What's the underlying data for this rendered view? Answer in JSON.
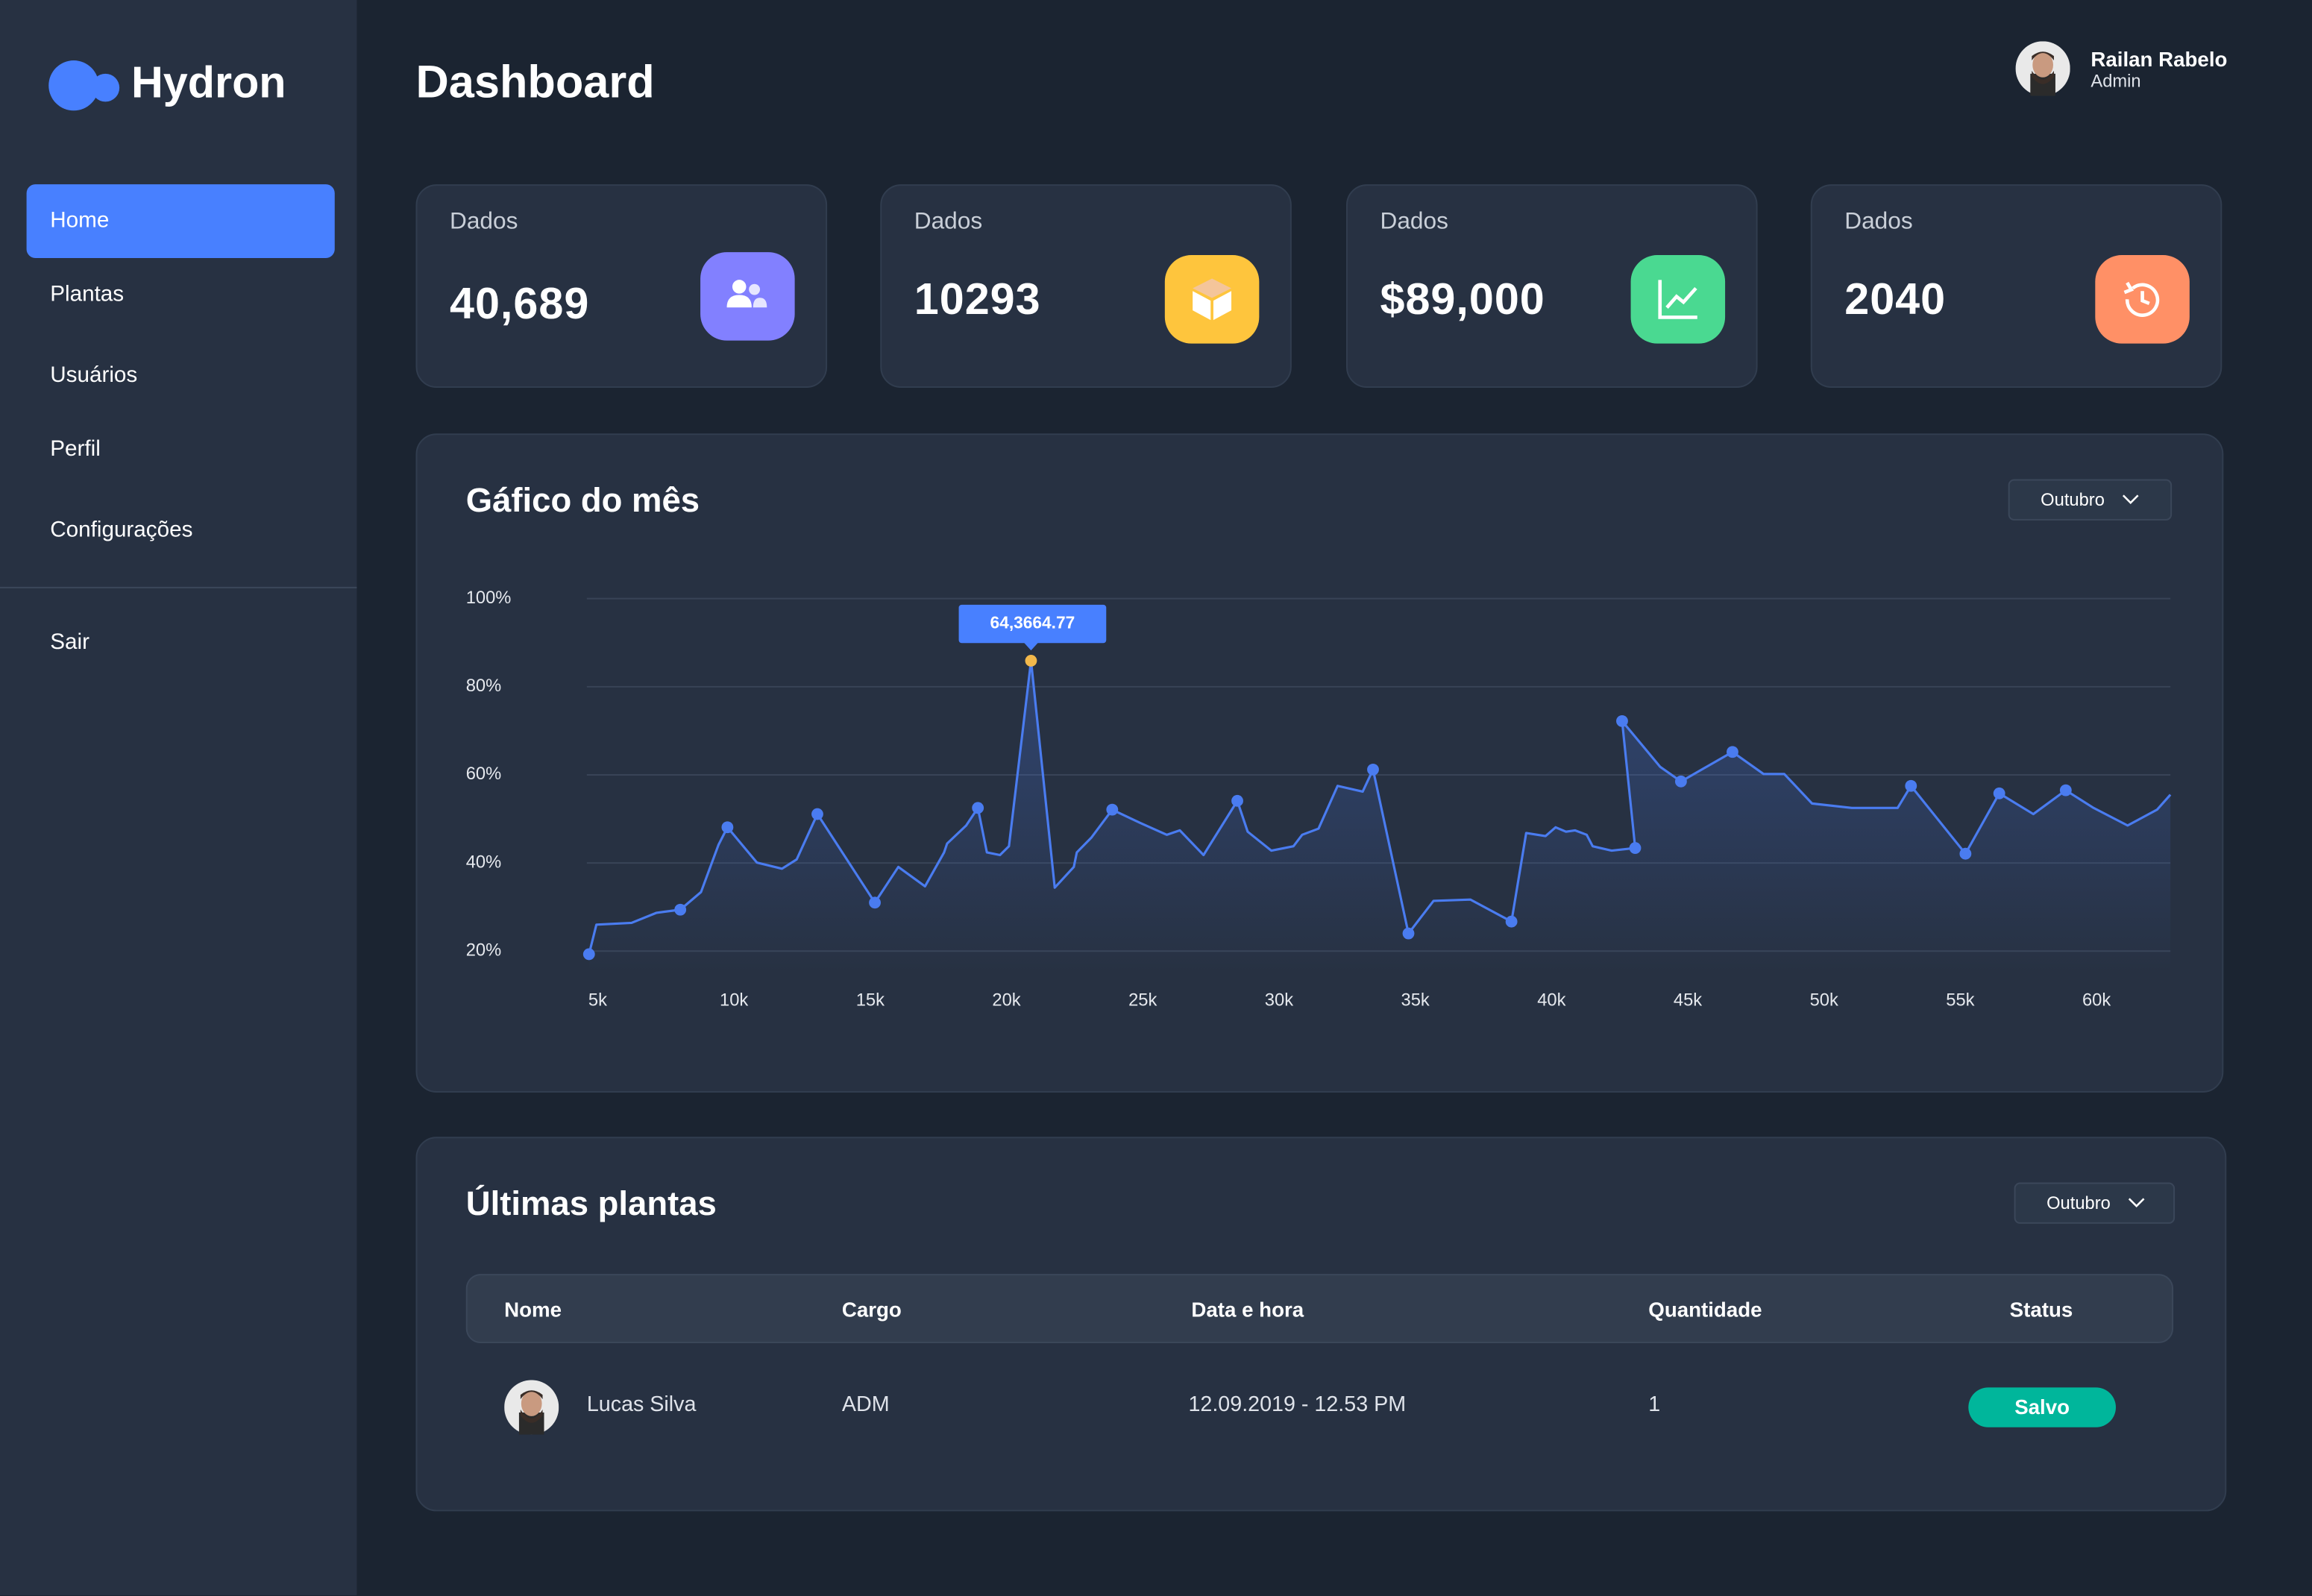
{
  "sidebar": {
    "logo": "Hydron",
    "nav": [
      "Home",
      "Plantas",
      "Usuários",
      "Perfil",
      "Configurações"
    ],
    "active": 0,
    "logout": "Sair"
  },
  "header": {
    "title": "Dashboard",
    "user": {
      "name": "Railan Rabelo",
      "role": "Admin"
    }
  },
  "cards": [
    {
      "label": "Dados",
      "value": "40,689",
      "color": "#8280ff"
    },
    {
      "label": "Dados",
      "value": "10293",
      "color": "#fec53d"
    },
    {
      "label": "Dados",
      "value": "$89,000",
      "color": "#4ad991"
    },
    {
      "label": "Dados",
      "value": "2040",
      "color": "#ff9066"
    }
  ],
  "chart_data": {
    "type": "line",
    "title": "Gáfico do mês",
    "filter": "Outubro",
    "color": "#4a7cf0",
    "x": [
      4680,
      4950,
      6240,
      7160,
      8030,
      8790,
      9430,
      9760,
      10840,
      11760,
      12300,
      13060,
      15170,
      16030,
      17010,
      17710,
      17820,
      18520,
      18950,
      19280,
      19760,
      20090,
      20900,
      21770,
      22470,
      22580,
      23120,
      23880,
      24900,
      25880,
      26360,
      27230,
      28470,
      28850,
      29720,
      30530,
      30850,
      31450,
      32150,
      33070,
      33450,
      34750,
      35670,
      37020,
      38530,
      39070,
      39780,
      40150,
      40530,
      40860,
      41290,
      41510,
      42210,
      43070,
      42590,
      43990,
      44750,
      46640,
      47780,
      48540,
      49560,
      51020,
      52700,
      53190,
      55190,
      56430,
      57680,
      58870,
      59890,
      61140,
      62220,
      62710
    ],
    "values": [
      19.3,
      26.0,
      26.4,
      28.7,
      29.4,
      33.4,
      44.1,
      48.1,
      40.1,
      38.7,
      40.8,
      51.1,
      31.0,
      39.1,
      34.7,
      42.4,
      44.4,
      48.5,
      52.5,
      42.4,
      41.8,
      43.8,
      85.9,
      34.4,
      39.1,
      42.4,
      45.8,
      52.1,
      49.1,
      46.4,
      47.4,
      41.8,
      54.1,
      47.1,
      42.8,
      43.8,
      46.4,
      47.8,
      57.5,
      56.2,
      61.2,
      24.0,
      31.4,
      31.7,
      26.7,
      46.8,
      46.1,
      48.1,
      47.1,
      47.4,
      46.4,
      43.8,
      42.8,
      43.4,
      72.2,
      61.8,
      58.5,
      65.2,
      60.2,
      60.2,
      53.5,
      52.5,
      52.5,
      57.5,
      42.1,
      55.8,
      51.1,
      56.5,
      52.5,
      48.5,
      52.1,
      55.5
    ],
    "markers": [
      0,
      4,
      7,
      11,
      12,
      18,
      22,
      27,
      32,
      40,
      41,
      44,
      53,
      54,
      56,
      57,
      63,
      64,
      65,
      67
    ],
    "highlight": {
      "index": 22,
      "label": "64,3664.77",
      "color": "#f2b84b"
    },
    "xlim": [
      4600,
      62710
    ],
    "ylim": [
      15,
      100
    ],
    "xticks": [
      {
        "value": 5000,
        "label": "5k"
      },
      {
        "value": 10000,
        "label": "10k"
      },
      {
        "value": 15000,
        "label": "15k"
      },
      {
        "value": 20000,
        "label": "20k"
      },
      {
        "value": 25000,
        "label": "25k"
      },
      {
        "value": 30000,
        "label": "30k"
      },
      {
        "value": 35000,
        "label": "35k"
      },
      {
        "value": 40000,
        "label": "40k"
      },
      {
        "value": 45000,
        "label": "45k"
      },
      {
        "value": 50000,
        "label": "50k"
      },
      {
        "value": 55000,
        "label": "55k"
      },
      {
        "value": 60000,
        "label": "60k"
      }
    ],
    "yticks": [
      {
        "value": 20,
        "label": "20%"
      },
      {
        "value": 40,
        "label": "40%"
      },
      {
        "value": 60,
        "label": "60%"
      },
      {
        "value": 80,
        "label": "80%"
      },
      {
        "value": 100,
        "label": "100%"
      }
    ],
    "grid": true
  },
  "table": {
    "title": "Últimas plantas",
    "filter": "Outubro",
    "columns": [
      "Nome",
      "Cargo",
      "Data e hora",
      "Quantidade",
      "Status"
    ],
    "rows": [
      [
        "Lucas Silva",
        "ADM",
        "12.09.2019 - 12.53 PM",
        "1",
        "Salvo"
      ]
    ]
  }
}
